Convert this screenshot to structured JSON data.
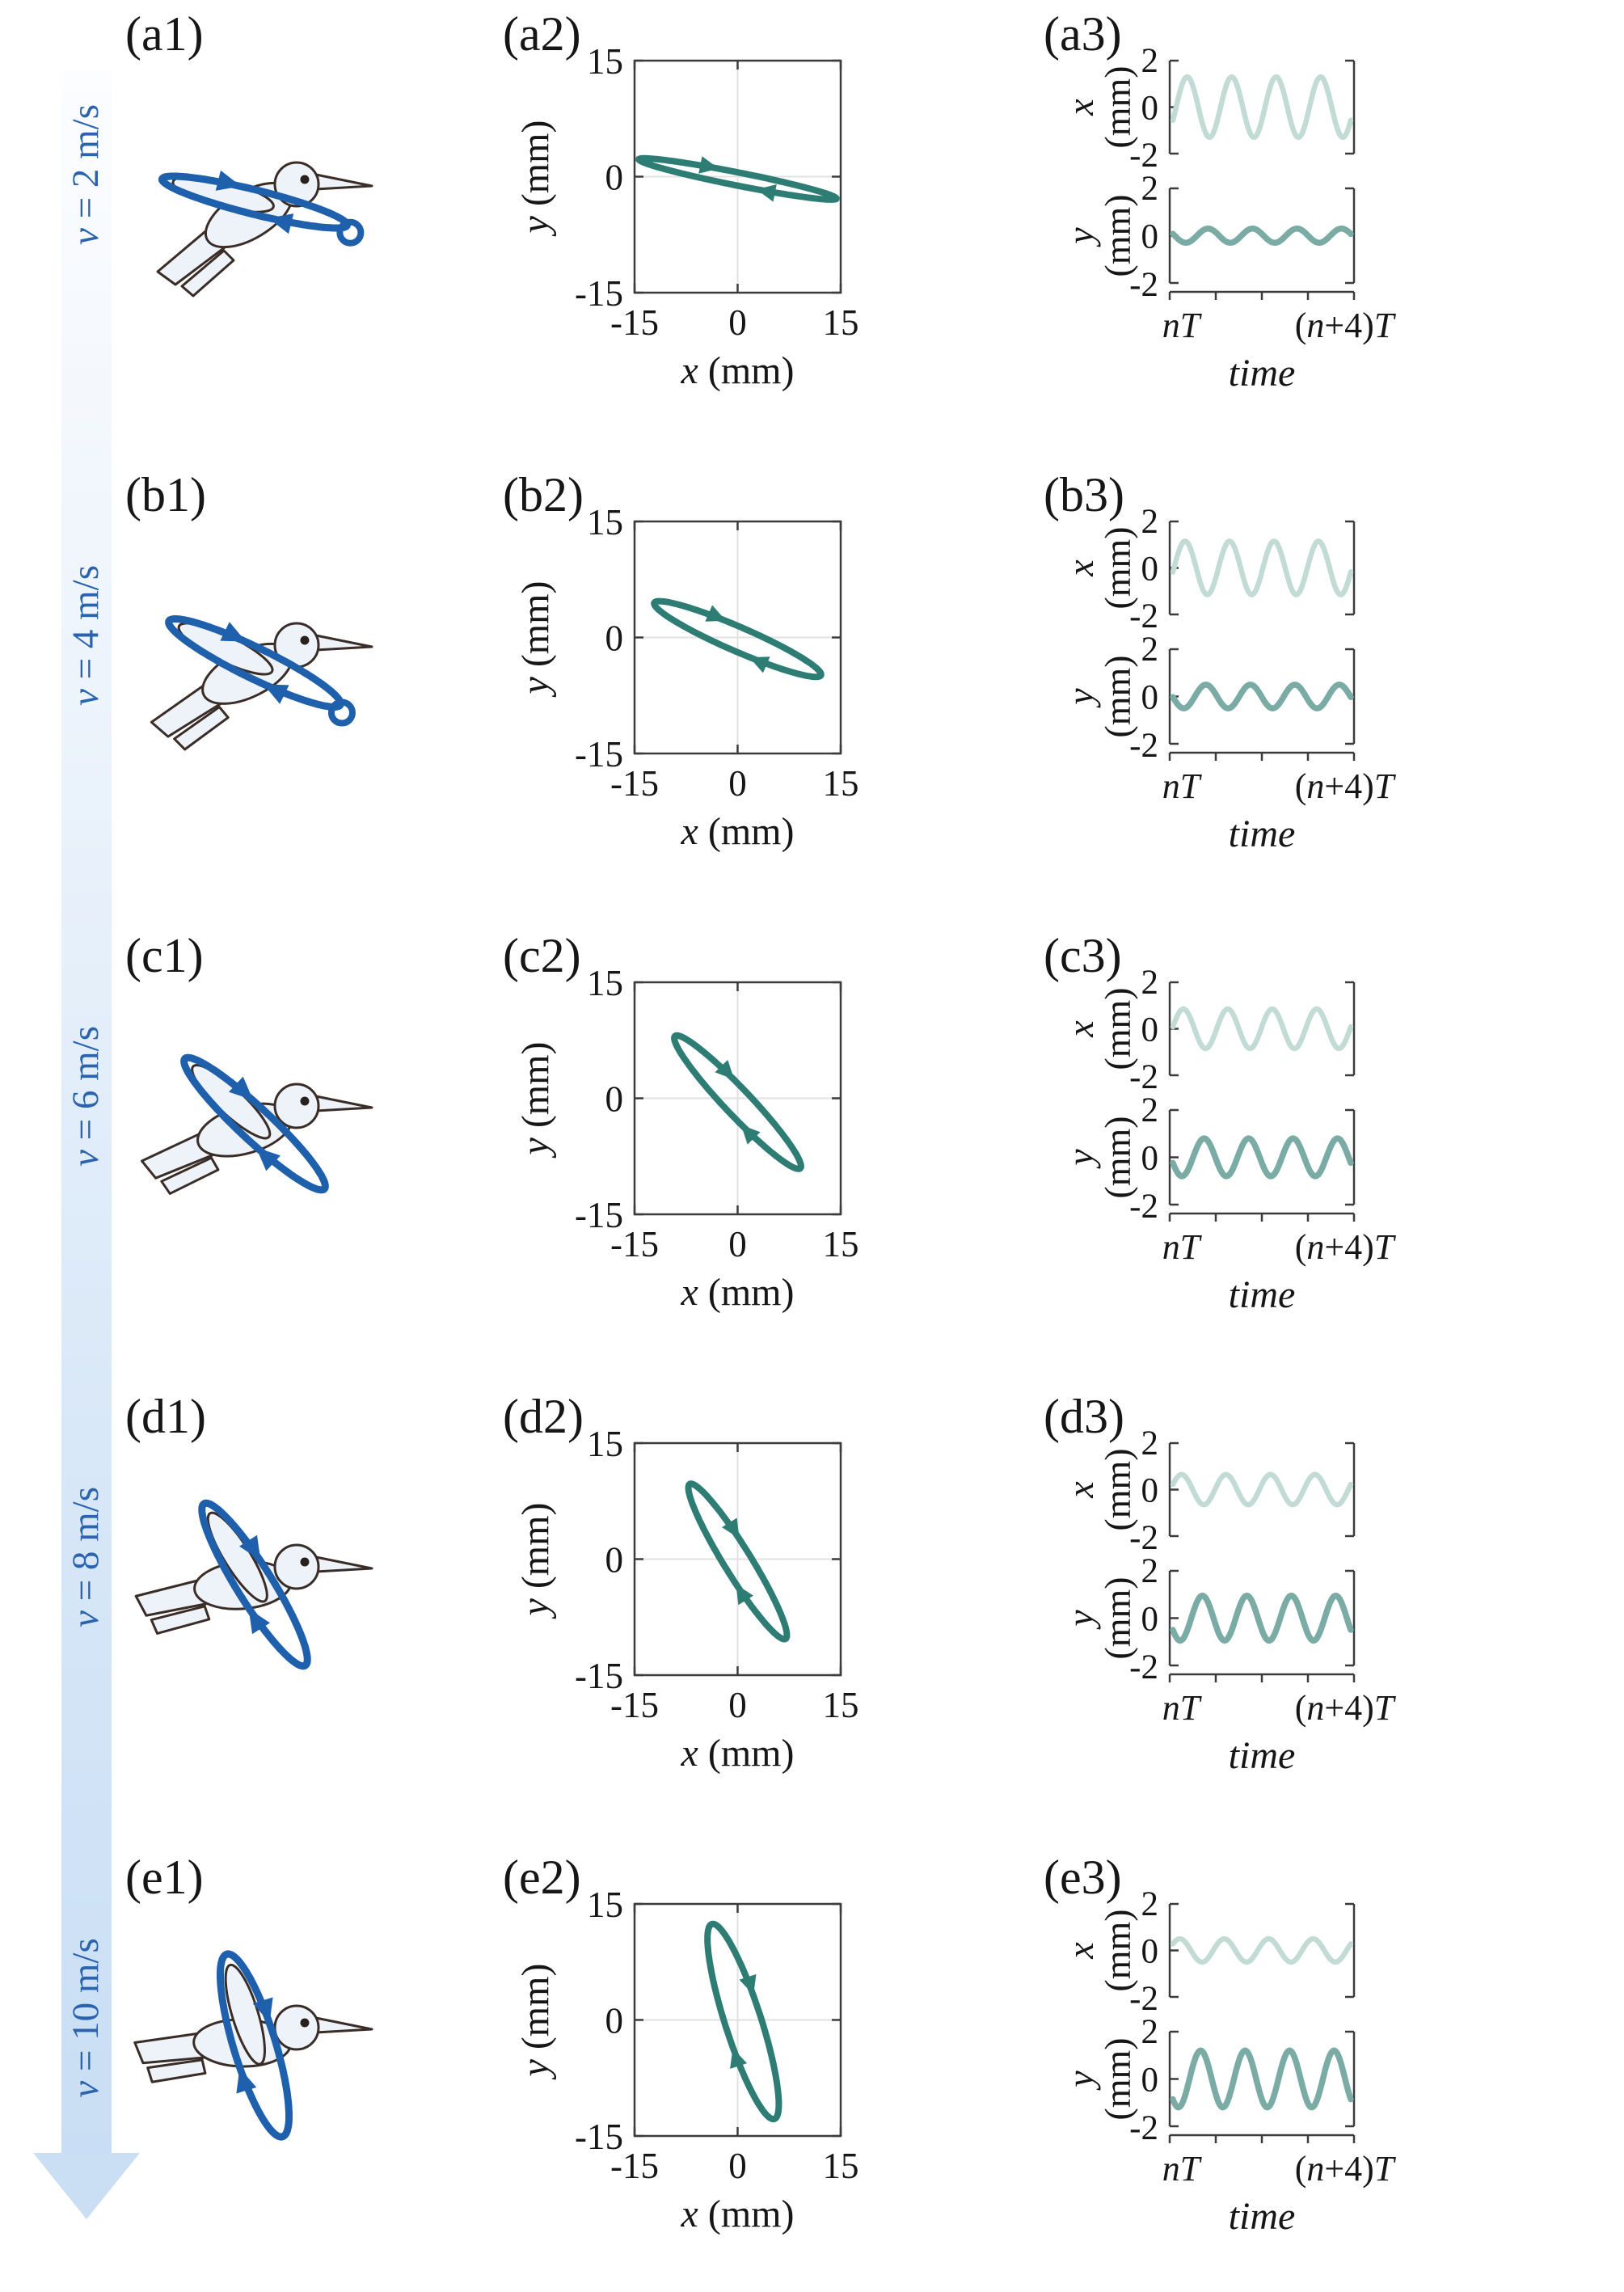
{
  "figure": {
    "description": "Hummingbird wingtip trajectory versus flight speed; 5 rows by 3 columns of panels",
    "speed_arrow": {
      "orientation": "vertical-down",
      "meaning": "increasing flight speed"
    }
  },
  "colors": {
    "velocity_label_blue": "#2a64ae",
    "loop_blue": "#1f60ad",
    "xy_teal": "#2e7d74",
    "ts_x_light_teal": "#c2dbd5",
    "ts_y_mid_teal": "#7aaba4",
    "axis": "#3b3b3b",
    "grid": "#e2e2e2",
    "bird_fill": "#eef3fa",
    "bird_outline": "#3a2d28",
    "eye": "#2a211c",
    "arrow_band_top": "#fcfdff",
    "arrow_band_bottom": "#c9def4",
    "arrow_head": "#cbdff4"
  },
  "chart_data": {
    "type": "multi-panel",
    "shared": {
      "xy_panel": {
        "xlabel_var": "x",
        "xlabel_unit": " (mm)",
        "ylabel_var": "y",
        "ylabel_unit": " (mm)",
        "xlim": [
          -15,
          15
        ],
        "ylim": [
          -15,
          15
        ],
        "xticks": [
          "-15",
          "0",
          "15"
        ],
        "yticks": [
          "15",
          "0",
          "-15"
        ],
        "grid": "zero cross-hair gridlines"
      },
      "ts_panel": {
        "xlabel": "time",
        "xtick_left": "nT",
        "xtick_right": "(n+4)T",
        "ylim": [
          -2,
          2
        ],
        "yticks": [
          "2",
          "0",
          "-2"
        ],
        "top_var": "x",
        "bottom_var": "y",
        "unit": "(mm)",
        "periods_shown": 4
      }
    },
    "rows": [
      {
        "row": "a",
        "panel_labels": [
          "(a1)",
          "(a2)",
          "(a3)"
        ],
        "velocity_label": "v = 2 m/s",
        "velocity_mps": 2,
        "bird": {
          "pitch_deg": 0,
          "loop_tilt_deg": -14,
          "loop_rx": 118,
          "loop_ry": 15,
          "end_curl": true
        },
        "xy_ellipse": {
          "cx_mm": 0,
          "cy_mm": -0.3,
          "semi_major_mm": 14.6,
          "semi_minor_mm": 0.85,
          "tilt_deg": -10,
          "direction": "clockwise"
        },
        "time_series": {
          "x_amp_mm": 1.3,
          "y_amp_mm": 0.3,
          "x_phase_rad": -0.45,
          "y_phase_rad": 2.89
        }
      },
      {
        "row": "b",
        "panel_labels": [
          "(b1)",
          "(b2)",
          "(b3)"
        ],
        "velocity_label": "v = 4 m/s",
        "velocity_mps": 4,
        "bird": {
          "pitch_deg": 5,
          "loop_tilt_deg": -26,
          "loop_rx": 118,
          "loop_ry": 19,
          "end_curl": true
        },
        "xy_ellipse": {
          "cx_mm": 0,
          "cy_mm": -0.2,
          "semi_major_mm": 13.0,
          "semi_minor_mm": 1.6,
          "tilt_deg": -21,
          "direction": "clockwise"
        },
        "time_series": {
          "x_amp_mm": 1.15,
          "y_amp_mm": 0.5,
          "x_phase_rad": -0.15,
          "y_phase_rad": 3.19
        }
      },
      {
        "row": "c",
        "panel_labels": [
          "(c1)",
          "(c2)",
          "(c3)"
        ],
        "velocity_label": "v = 6 m/s",
        "velocity_mps": 6,
        "bird": {
          "pitch_deg": 15,
          "loop_tilt_deg": -43,
          "loop_rx": 118,
          "loop_ry": 20,
          "end_curl": false
        },
        "xy_ellipse": {
          "cx_mm": 0,
          "cy_mm": -0.5,
          "semi_major_mm": 12.5,
          "semi_minor_mm": 1.8,
          "tilt_deg": -43,
          "direction": "clockwise"
        },
        "time_series": {
          "x_amp_mm": 0.85,
          "y_amp_mm": 0.8,
          "x_phase_rad": 0.1,
          "y_phase_rad": 3.44
        }
      },
      {
        "row": "d",
        "panel_labels": [
          "(d1)",
          "(d2)",
          "(d3)"
        ],
        "velocity_label": "v = 8 m/s",
        "velocity_mps": 8,
        "bird": {
          "pitch_deg": 26,
          "loop_tilt_deg": -58,
          "loop_rx": 118,
          "loop_ry": 22,
          "end_curl": false
        },
        "xy_ellipse": {
          "cx_mm": 0,
          "cy_mm": -0.3,
          "semi_major_mm": 12.2,
          "semi_minor_mm": 1.9,
          "tilt_deg": -55,
          "direction": "clockwise"
        },
        "time_series": {
          "x_amp_mm": 0.65,
          "y_amp_mm": 0.95,
          "x_phase_rad": 0.35,
          "y_phase_rad": 3.69
        }
      },
      {
        "row": "e",
        "panel_labels": [
          "(e1)",
          "(e2)",
          "(e3)"
        ],
        "velocity_label": "v = 10 m/s",
        "velocity_mps": 10,
        "bird": {
          "pitch_deg": 32,
          "loop_tilt_deg": -73,
          "loop_rx": 118,
          "loop_ry": 26,
          "end_curl": false
        },
        "xy_ellipse": {
          "cx_mm": 0.8,
          "cy_mm": -0.2,
          "semi_major_mm": 13.4,
          "semi_minor_mm": 2.6,
          "tilt_deg": -70,
          "direction": "clockwise"
        },
        "time_series": {
          "x_amp_mm": 0.5,
          "y_amp_mm": 1.2,
          "x_phase_rad": 0.6,
          "y_phase_rad": 3.94
        }
      }
    ]
  }
}
